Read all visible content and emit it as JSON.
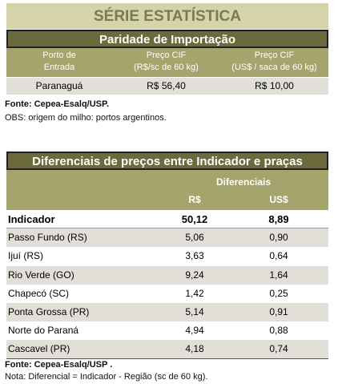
{
  "header": {
    "title": "SÉRIE ESTATÍSTICA"
  },
  "table1": {
    "title": "Paridade de Importação",
    "columns": [
      [
        "Porto de",
        "Entrada"
      ],
      [
        "Preço CIF",
        "(R$/sc de 60 kg)"
      ],
      [
        "Preço CIF",
        "(US$ / saca de 60 kg)"
      ]
    ],
    "rows": [
      [
        "Paranaguá",
        "R$ 56,40",
        "R$ 10,00"
      ]
    ]
  },
  "notes1": {
    "source": "Fonte: Cepea-Esalq/USP.",
    "obs": "OBS: origem do milho: portos argentinos."
  },
  "table2": {
    "title": "Diferenciais de preços entre Indicador e praças",
    "group_header": "Diferenciais",
    "columns": [
      "R$",
      "US$"
    ],
    "rows": [
      [
        "Indicador",
        "50,12",
        "8,89"
      ],
      [
        "Passo Fundo (RS)",
        "5,06",
        "0,90"
      ],
      [
        "Ijuí (RS)",
        "3,63",
        "0,64"
      ],
      [
        "Rio Verde (GO)",
        "9,24",
        "1,64"
      ],
      [
        "Chapecó (SC)",
        "1,42",
        "0,25"
      ],
      [
        "Ponta Grossa (PR)",
        "5,14",
        "0,91"
      ],
      [
        "Norte do Paraná",
        "4,94",
        "0,88"
      ],
      [
        "Cascavel (PR)",
        "4,18",
        "0,74"
      ]
    ]
  },
  "notes2": {
    "source": "Fonte: Cepea-Esalq/USP .",
    "note": "Nota: Diferencial = Indicador - Região (sc de 60 kg)."
  }
}
